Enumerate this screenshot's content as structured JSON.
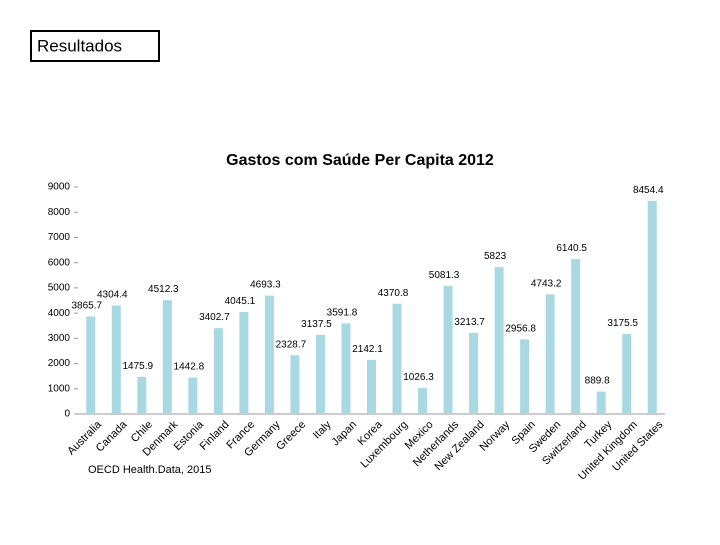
{
  "header": {
    "title": "Resultados"
  },
  "chart_data": {
    "type": "bar",
    "title": "Gastos com Saúde Per Capita 2012",
    "categories": [
      "Australia",
      "Canada",
      "Chile",
      "Denmark",
      "Estonia",
      "Finland",
      "France",
      "Germany",
      "Greece",
      "Italy",
      "Japan",
      "Korea",
      "Luxembourg",
      "Mexico",
      "Netherlands",
      "New Zealand",
      "Norway",
      "Spain",
      "Sweden",
      "Switzerland",
      "Turkey",
      "United Kingdom",
      "United States"
    ],
    "values": [
      3865.7,
      4304.4,
      1475.9,
      4512.3,
      1442.8,
      3402.7,
      4045.1,
      4693.3,
      2328.7,
      3137.5,
      3591.8,
      2142.1,
      4370.8,
      1026.3,
      5081.3,
      3213.7,
      5823,
      2956.8,
      4743.2,
      6140.5,
      889.8,
      3175.5,
      8454.4
    ],
    "color": "#a8d8e2",
    "ylim": [
      0,
      9000
    ],
    "yticks": [
      0,
      1000,
      2000,
      3000,
      4000,
      5000,
      6000,
      7000,
      8000,
      9000
    ],
    "grid": false,
    "source": "OECD Health.Data, 2015"
  }
}
